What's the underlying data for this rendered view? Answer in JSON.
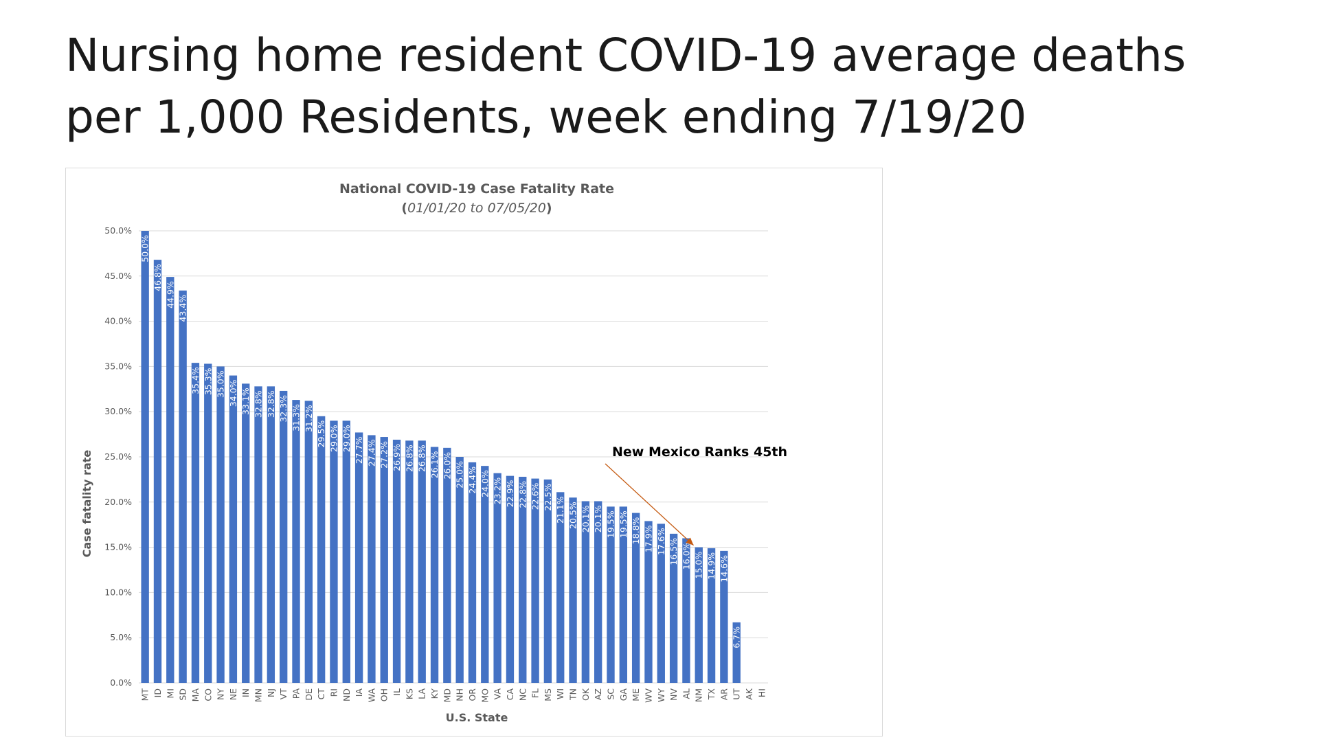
{
  "slide": {
    "title_line1": "Nursing home resident COVID-19 average deaths",
    "title_line2": "per 1,000 Residents, week ending 7/19/20"
  },
  "chart_data": {
    "type": "bar",
    "title": "National COVID-19 Case Fatality Rate",
    "subtitle_open": "(",
    "subtitle_italic": "01/01/20 to 07/05/20",
    "subtitle_close": ")",
    "xlabel": "U.S. State",
    "ylabel": "Case fatality rate",
    "ylim": [
      0,
      50
    ],
    "yticks": [
      "0.0%",
      "5.0%",
      "10.0%",
      "15.0%",
      "20.0%",
      "25.0%",
      "30.0%",
      "35.0%",
      "40.0%",
      "45.0%",
      "50.0%"
    ],
    "grid": true,
    "bar_color": "#4472c4",
    "categories": [
      "MT",
      "ID",
      "MI",
      "SD",
      "MA",
      "CO",
      "NY",
      "NE",
      "IN",
      "MN",
      "NJ",
      "VT",
      "PA",
      "DE",
      "CT",
      "RI",
      "ND",
      "IA",
      "WA",
      "OH",
      "IL",
      "KS",
      "LA",
      "KY",
      "MD",
      "NH",
      "OR",
      "MO",
      "VA",
      "CA",
      "NC",
      "FL",
      "MS",
      "WI",
      "TN",
      "OK",
      "AZ",
      "SC",
      "GA",
      "ME",
      "WV",
      "WY",
      "NV",
      "AL",
      "NM",
      "TX",
      "AR",
      "UT",
      "AK",
      "HI"
    ],
    "values": [
      50.0,
      46.8,
      44.9,
      43.4,
      35.4,
      35.3,
      35.0,
      34.0,
      33.1,
      32.8,
      32.8,
      32.3,
      31.3,
      31.2,
      29.5,
      29.0,
      29.0,
      27.7,
      27.4,
      27.2,
      26.9,
      26.8,
      26.8,
      26.1,
      26.0,
      25.0,
      24.4,
      24.0,
      23.2,
      22.9,
      22.8,
      22.6,
      22.5,
      21.1,
      20.5,
      20.1,
      20.1,
      19.5,
      19.5,
      18.8,
      17.9,
      17.6,
      16.5,
      16.0,
      15.0,
      14.9,
      14.6,
      6.7,
      null,
      null
    ],
    "labels": [
      "50.0%",
      "46.8%",
      "44.9%",
      "43.4%",
      "35.4%",
      "35.3%",
      "35.0%",
      "34.0%",
      "33.1%",
      "32.8%",
      "32.8%",
      "32.3%",
      "31.3%",
      "31.2%",
      "29.5%",
      "29.0%",
      "29.0%",
      "27.7%",
      "27.4%",
      "27.2%",
      "26.9%",
      "26.8%",
      "26.8%",
      "26.1%",
      "26.0%",
      "25.0%",
      "24.4%",
      "24.0%",
      "23.2%",
      "22.9%",
      "22.8%",
      "22.6%",
      "22.5%",
      "21.1%",
      "20.5%",
      "20.1%",
      "20.1%",
      "19.5%",
      "19.5%",
      "18.8%",
      "17.9%",
      "17.6%",
      "16.5%",
      "16.0%",
      "15.0%",
      "14.9%",
      "14.6%",
      "6.7%",
      "",
      ""
    ],
    "annotation": {
      "text": "New Mexico Ranks 45th",
      "target_category": "NM",
      "arrow_color": "#c55a11"
    }
  }
}
